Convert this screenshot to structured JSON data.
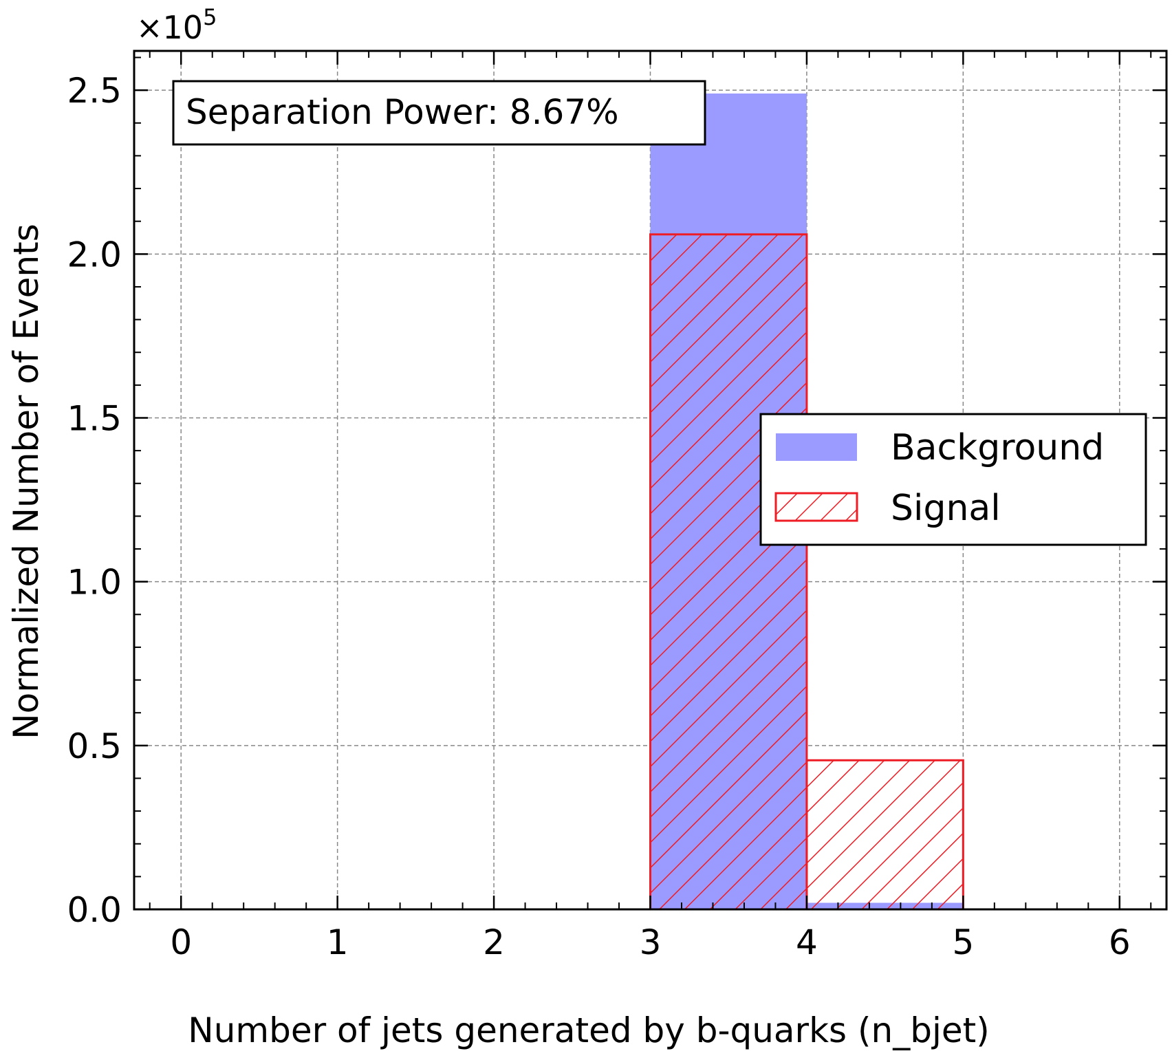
{
  "chart_data": {
    "type": "bar",
    "title": "",
    "xlabel": "Number of jets generated by b-quarks (n_bjet)",
    "ylabel": "Normalized Number of Events",
    "y_multiplier_label": "×10",
    "y_multiplier_exponent": "5",
    "y_scale_factor": 100000,
    "xlim": [
      -0.3,
      6.3
    ],
    "ylim": [
      0,
      2.62
    ],
    "x_ticks": [
      0,
      1,
      2,
      3,
      4,
      5,
      6
    ],
    "x_tick_labels": [
      "0",
      "1",
      "2",
      "3",
      "4",
      "5",
      "6"
    ],
    "y_ticks": [
      0,
      0.5,
      1,
      1.5,
      2,
      2.5
    ],
    "y_tick_labels": [
      "0.0",
      "0.5",
      "1.0",
      "1.5",
      "2.0",
      "2.5"
    ],
    "grid": true,
    "bin_edges": [
      3,
      4,
      5
    ],
    "series": [
      {
        "name": "Background",
        "style": "filled",
        "color": "#9b9bff",
        "values": [
          2.49,
          0.02
        ]
      },
      {
        "name": "Signal",
        "style": "hatched",
        "color": "#ee1c24",
        "values": [
          2.06,
          0.455
        ]
      }
    ],
    "annotation": "Separation Power: 8.67%",
    "legend_position": "center-right"
  }
}
